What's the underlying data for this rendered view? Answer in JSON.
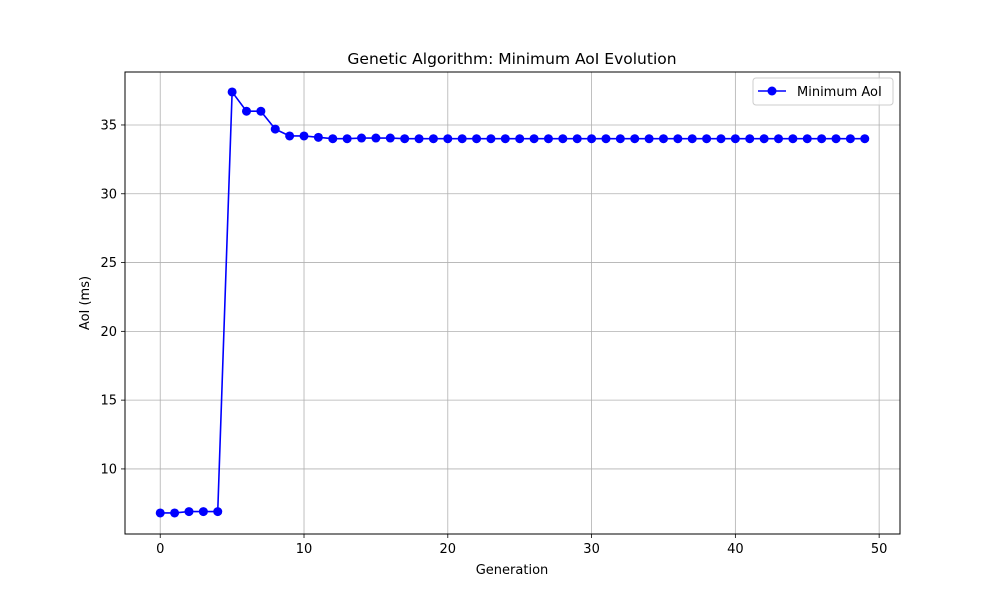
{
  "chart_data": {
    "type": "line",
    "title": "Genetic Algorithm: Minimum AoI Evolution",
    "xlabel": "Generation",
    "ylabel": "AoI (ms)",
    "xlim": [
      -2.45,
      51.45
    ],
    "ylim": [
      5.27,
      38.85
    ],
    "xticks": [
      0,
      10,
      20,
      30,
      40,
      50
    ],
    "yticks": [
      10,
      15,
      20,
      25,
      30,
      35
    ],
    "grid": true,
    "legend_position": "upper right",
    "series": [
      {
        "name": "Minimum AoI",
        "color": "#0000ff",
        "marker": "circle",
        "x": [
          0,
          1,
          2,
          3,
          4,
          5,
          6,
          7,
          8,
          9,
          10,
          11,
          12,
          13,
          14,
          15,
          16,
          17,
          18,
          19,
          20,
          21,
          22,
          23,
          24,
          25,
          26,
          27,
          28,
          29,
          30,
          31,
          32,
          33,
          34,
          35,
          36,
          37,
          38,
          39,
          40,
          41,
          42,
          43,
          44,
          45,
          46,
          47,
          48,
          49
        ],
        "values": [
          6.8,
          6.8,
          6.9,
          6.9,
          6.9,
          37.4,
          36.0,
          36.0,
          34.7,
          34.2,
          34.2,
          34.1,
          34.0,
          34.0,
          34.05,
          34.05,
          34.05,
          34.0,
          34.0,
          34.0,
          34.0,
          34.0,
          34.0,
          34.0,
          34.0,
          34.0,
          34.0,
          34.0,
          34.0,
          34.0,
          34.0,
          34.0,
          34.0,
          34.0,
          34.0,
          34.0,
          34.0,
          34.0,
          34.0,
          34.0,
          34.0,
          34.0,
          34.0,
          34.0,
          34.0,
          34.0,
          34.0,
          34.0,
          34.0,
          34.0
        ]
      }
    ]
  }
}
